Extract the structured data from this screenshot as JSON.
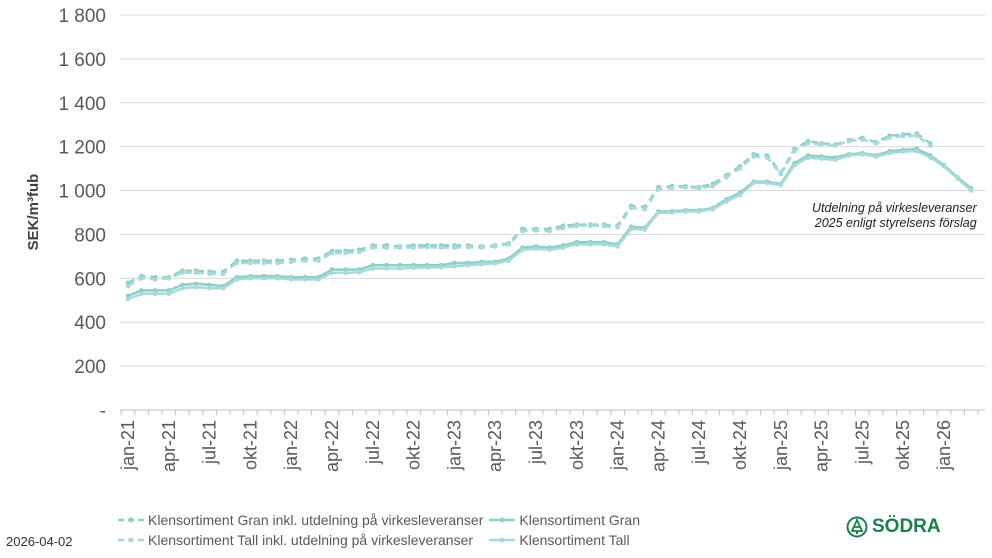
{
  "chart_data": {
    "type": "line",
    "ylabel": "SEK/m³fub",
    "ylim": [
      0,
      1800
    ],
    "yticks": [
      0,
      200,
      400,
      600,
      800,
      1000,
      1200,
      1400,
      1600,
      1800
    ],
    "ytick_labels": [
      "-",
      "200",
      "400",
      "600",
      "800",
      "1 000",
      "1 200",
      "1 400",
      "1 600",
      "1 800"
    ],
    "x_start": "jan-21",
    "x_tick_labels": [
      "jan-21",
      "apr-21",
      "jul-21",
      "okt-21",
      "jan-22",
      "apr-22",
      "jul-22",
      "okt-22",
      "jan-23",
      "apr-23",
      "jul-23",
      "okt-23",
      "jan-24",
      "apr-24",
      "jul-24",
      "okt-24",
      "jan-25",
      "apr-25",
      "jul-25",
      "okt-25",
      "jan-26"
    ],
    "grid": true,
    "legend_position": "bottom",
    "annotation": [
      "Utdelning på virkesleveranser",
      "2025 enligt styrelsens förslag"
    ],
    "series": [
      {
        "name": "Klensortiment Gran inkl. utdelning på virkesleveranser",
        "style": "dashed",
        "color": "#8fcfc4",
        "values": [
          580,
          610,
          605,
          605,
          635,
          635,
          630,
          630,
          680,
          680,
          680,
          680,
          685,
          690,
          690,
          725,
          725,
          730,
          750,
          750,
          745,
          750,
          750,
          750,
          750,
          750,
          745,
          750,
          760,
          825,
          825,
          825,
          840,
          845,
          845,
          845,
          840,
          930,
          925,
          1015,
          1020,
          1020,
          1015,
          1030,
          1070,
          1110,
          1165,
          1160,
          1080,
          1190,
          1225,
          1215,
          1210,
          1230,
          1240,
          1220,
          1250,
          1255,
          1260,
          1215,
          null,
          null,
          null
        ]
      },
      {
        "name": "Klensortiment Gran",
        "style": "solid",
        "color": "#8fcfc4",
        "values": [
          520,
          545,
          545,
          545,
          570,
          575,
          570,
          565,
          605,
          610,
          610,
          610,
          605,
          605,
          605,
          640,
          640,
          640,
          660,
          660,
          660,
          660,
          660,
          660,
          670,
          670,
          675,
          675,
          690,
          740,
          745,
          740,
          750,
          765,
          765,
          765,
          755,
          835,
          830,
          905,
          905,
          910,
          910,
          920,
          960,
          990,
          1040,
          1040,
          1030,
          1125,
          1160,
          1155,
          1150,
          1165,
          1170,
          1160,
          1180,
          1185,
          1190,
          1160,
          1115,
          1060,
          1010
        ]
      },
      {
        "name": "Klensortiment Tall inkl. utdelning på virkesleveranser",
        "style": "dashed",
        "color": "#a8dada",
        "values": [
          565,
          600,
          595,
          600,
          625,
          625,
          620,
          620,
          670,
          670,
          670,
          670,
          675,
          680,
          680,
          715,
          715,
          720,
          740,
          740,
          740,
          740,
          742,
          740,
          740,
          742,
          740,
          745,
          755,
          815,
          818,
          815,
          830,
          838,
          840,
          838,
          832,
          920,
          915,
          1005,
          1012,
          1015,
          1010,
          1020,
          1060,
          1100,
          1155,
          1150,
          1075,
          1180,
          1215,
          1210,
          1205,
          1225,
          1232,
          1215,
          1240,
          1248,
          1250,
          1205,
          null,
          null,
          null
        ]
      },
      {
        "name": "Klensortiment Tall",
        "style": "solid",
        "color": "#a8dada",
        "values": [
          505,
          530,
          530,
          530,
          555,
          560,
          555,
          555,
          595,
          600,
          600,
          600,
          595,
          595,
          595,
          625,
          625,
          628,
          645,
          645,
          645,
          648,
          650,
          650,
          655,
          660,
          665,
          668,
          680,
          730,
          735,
          730,
          740,
          755,
          755,
          755,
          745,
          825,
          822,
          898,
          900,
          905,
          905,
          915,
          950,
          980,
          1035,
          1035,
          1025,
          1115,
          1150,
          1145,
          1140,
          1160,
          1165,
          1155,
          1170,
          1178,
          1180,
          1150,
          1110,
          1055,
          1000
        ]
      }
    ]
  },
  "footer": {
    "date": "2026-04-02",
    "logo_text": "SÖDRA"
  }
}
